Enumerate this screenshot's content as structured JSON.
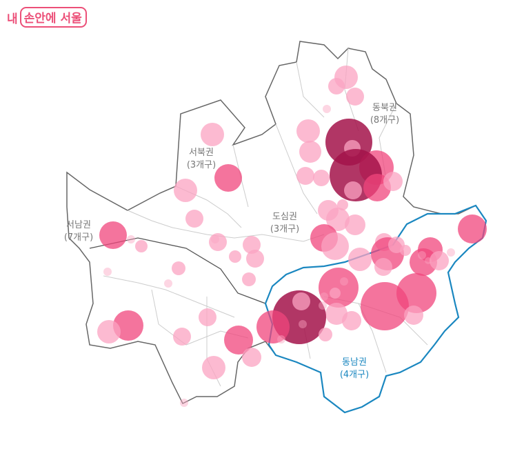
{
  "logo": {
    "prefix": "내",
    "boxed": "손안에 서울"
  },
  "regions": [
    {
      "name": "동북권",
      "count": "(8개구)",
      "style": "default"
    },
    {
      "name": "서북권",
      "count": "(3개구)",
      "style": "default"
    },
    {
      "name": "도심권",
      "count": "(3개구)",
      "style": "default"
    },
    {
      "name": "서남권",
      "count": "(7개구)",
      "style": "default"
    },
    {
      "name": "동남권",
      "count": "(4개구)",
      "style": "highlight"
    }
  ],
  "colors": {
    "outline": "#666666",
    "district_lines": "#cccccc",
    "highlight_outline": "#1a87c0",
    "bubble_light": "#fba3c1",
    "bubble_mid": "#f0457c",
    "bubble_dark": "#a3134a"
  }
}
